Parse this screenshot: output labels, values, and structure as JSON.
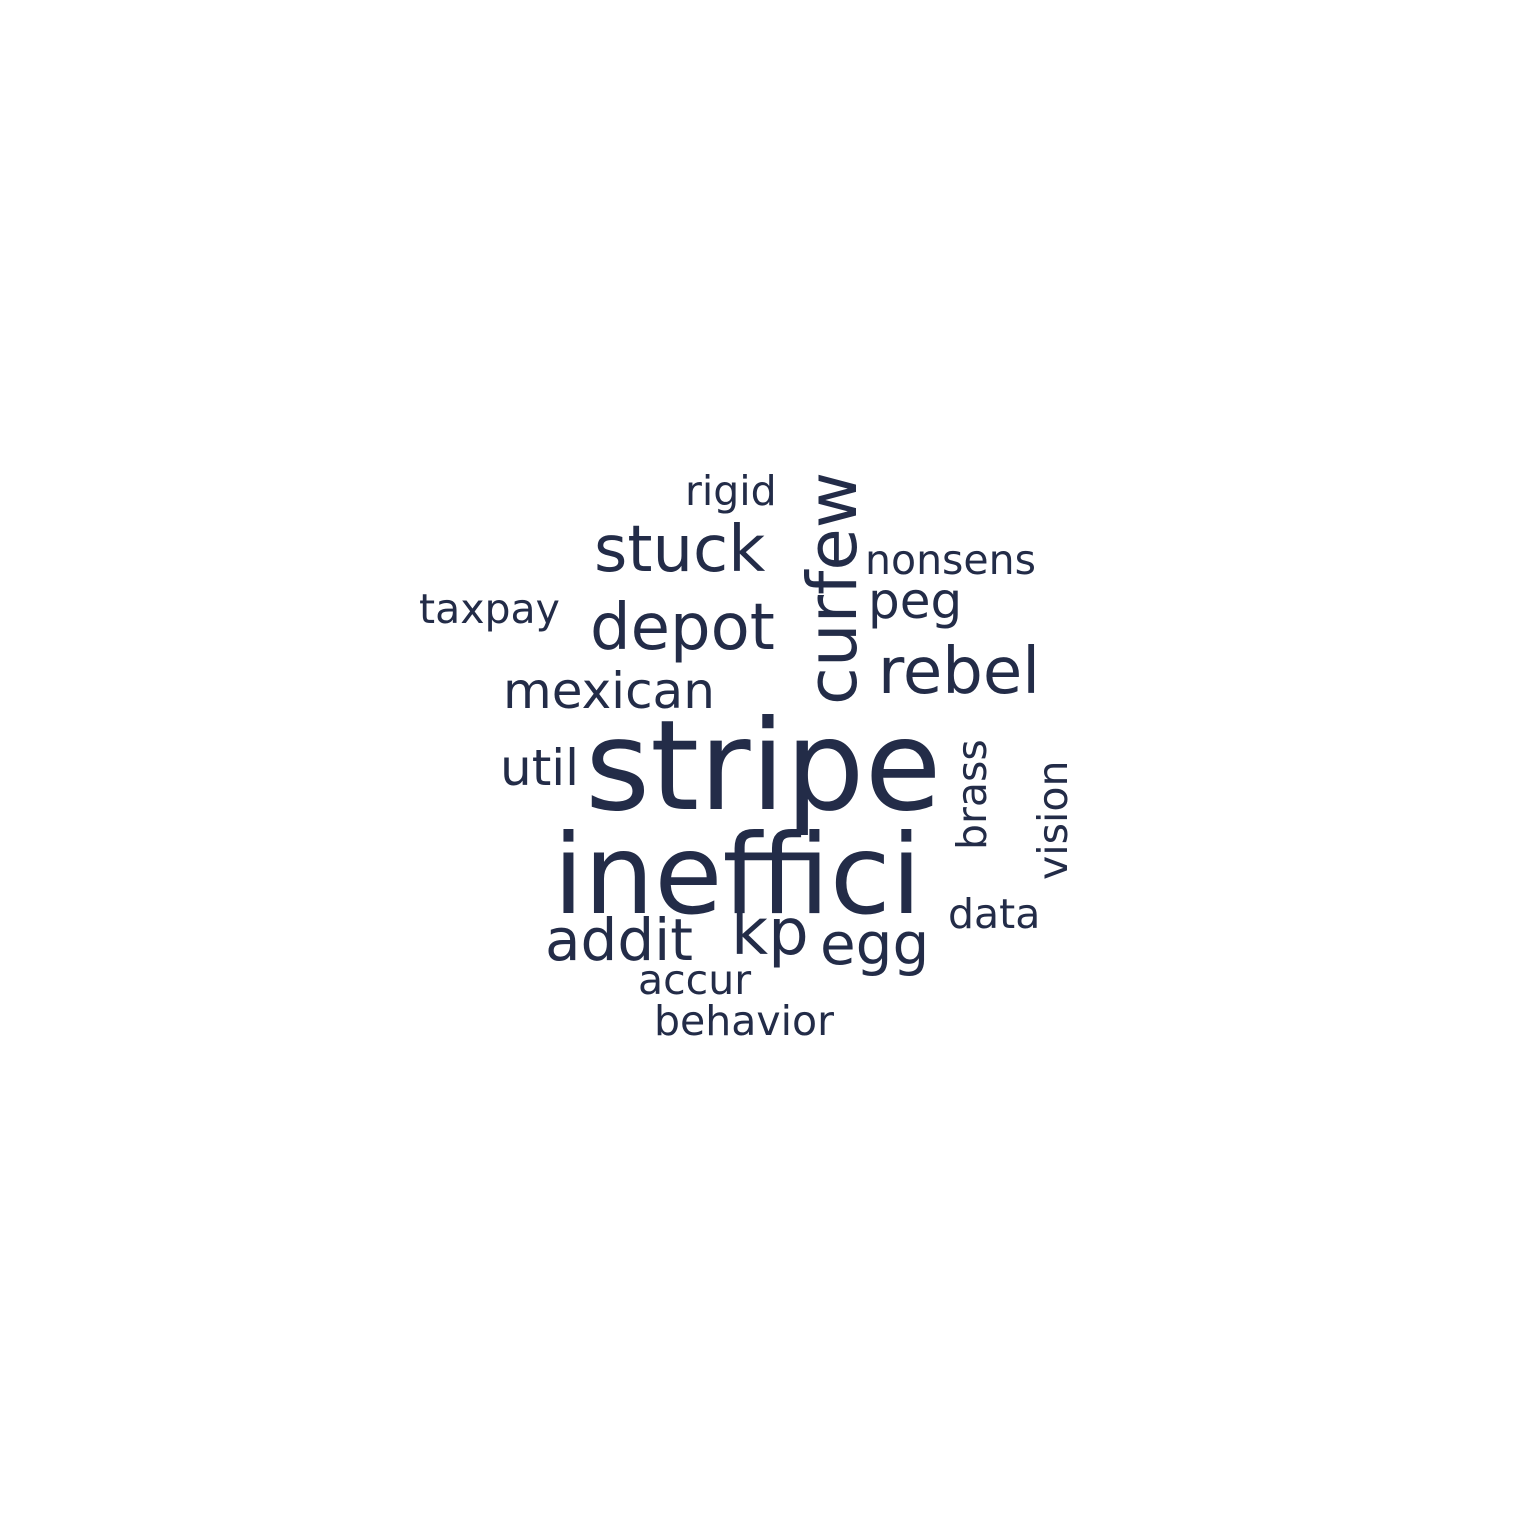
{
  "word_cloud": {
    "text_color": "#232c48",
    "background": "#ffffff",
    "words": [
      {
        "text": "stripe"
      },
      {
        "text": "ineffici"
      },
      {
        "text": "curfew",
        "orientation": "vertical"
      },
      {
        "text": "stuck"
      },
      {
        "text": "depot"
      },
      {
        "text": "rebel"
      },
      {
        "text": "kp"
      },
      {
        "text": "egg"
      },
      {
        "text": "addit"
      },
      {
        "text": "mexican"
      },
      {
        "text": "util"
      },
      {
        "text": "peg"
      },
      {
        "text": "nonsens"
      },
      {
        "text": "taxpay"
      },
      {
        "text": "rigid"
      },
      {
        "text": "data"
      },
      {
        "text": "accur"
      },
      {
        "text": "behavior"
      },
      {
        "text": "brass",
        "orientation": "vertical"
      },
      {
        "text": "vision",
        "orientation": "vertical"
      }
    ]
  }
}
